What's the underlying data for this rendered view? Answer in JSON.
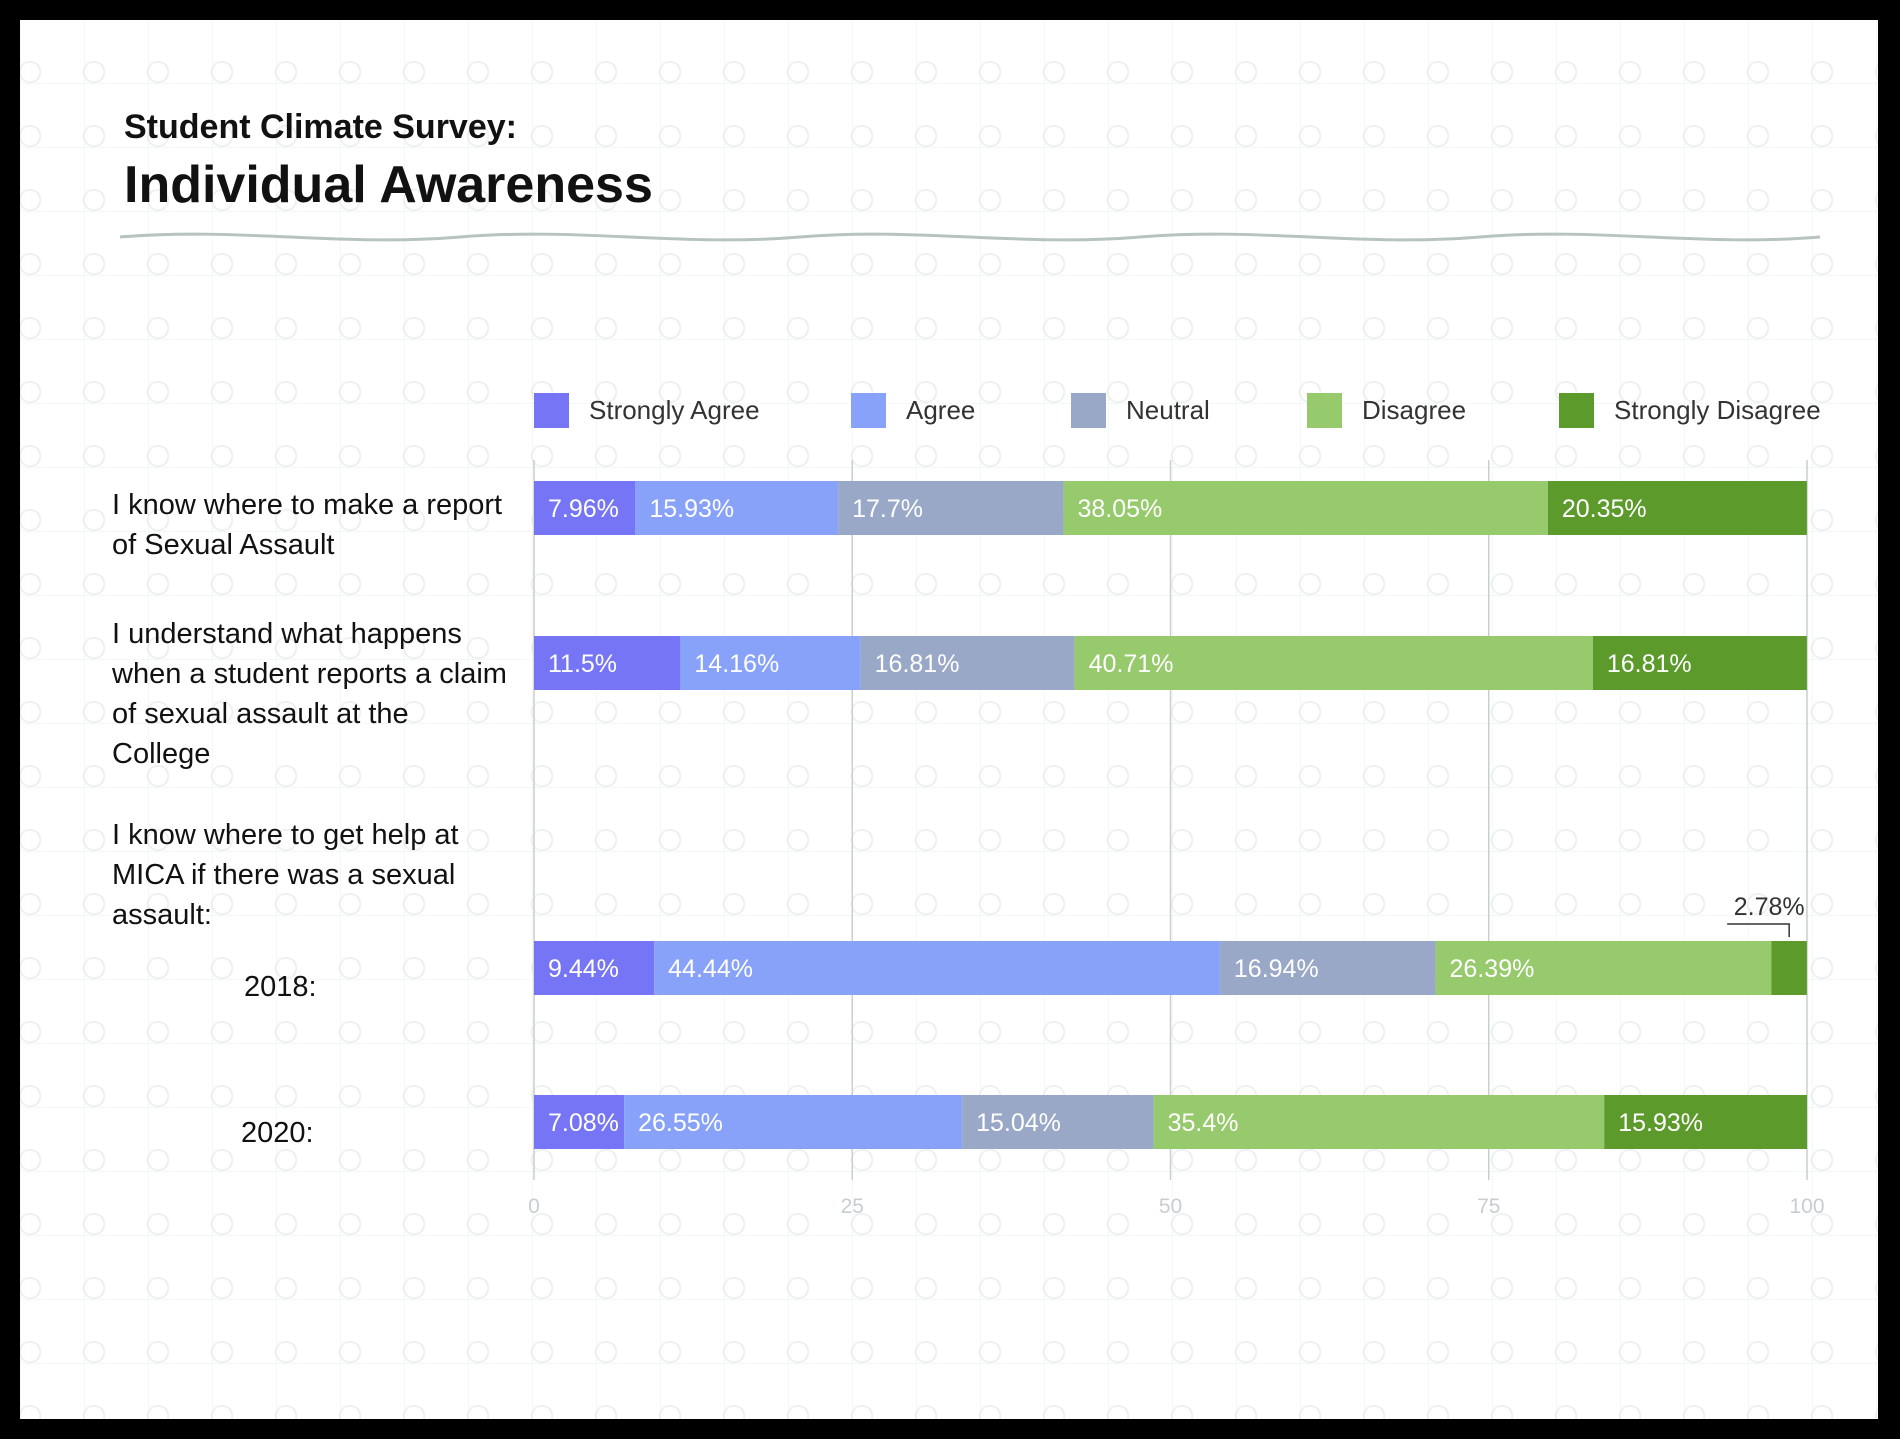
{
  "header": {
    "subtitle": "Student Climate Survey:",
    "title": "Individual Awareness"
  },
  "legend": [
    {
      "label": "Strongly Agree",
      "color": "#7575f5"
    },
    {
      "label": "Agree",
      "color": "#87a2f8"
    },
    {
      "label": "Neutral",
      "color": "#9aa8c8"
    },
    {
      "label": "Disagree",
      "color": "#96ca6c"
    },
    {
      "label": "Strongly Disagree",
      "color": "#5c9a2c"
    }
  ],
  "questions": [
    {
      "text": "I know where to make a report of Sexual Assault"
    },
    {
      "text": "I understand what happens when a student reports a claim of sexual assault at the College"
    },
    {
      "text": "I know where to get help at MICA if there was a sexual assault:"
    }
  ],
  "years": [
    "2018:",
    "2020:"
  ],
  "chart_data": {
    "type": "bar",
    "orientation": "horizontal",
    "stacked": true,
    "categories": [
      "I know where to make a report of Sexual Assault",
      "I understand what happens when a student reports a claim of sexual assault at the College",
      "I know where to get help at MICA if there was a sexual assault: 2018:",
      "I know where to get help at MICA if there was a sexual assault: 2020:"
    ],
    "series": [
      {
        "name": "Strongly Agree",
        "values": [
          7.96,
          11.5,
          9.44,
          7.08
        ],
        "labels": [
          "7.96%",
          "11.5%",
          "9.44%",
          "7.08%"
        ]
      },
      {
        "name": "Agree",
        "values": [
          15.93,
          14.16,
          44.44,
          26.55
        ],
        "labels": [
          "15.93%",
          "14.16%",
          "44.44%",
          "26.55%"
        ]
      },
      {
        "name": "Neutral",
        "values": [
          17.7,
          16.81,
          16.94,
          15.04
        ],
        "labels": [
          "17.7%",
          "16.81%",
          "16.94%",
          "15.04%"
        ]
      },
      {
        "name": "Disagree",
        "values": [
          38.05,
          40.71,
          26.39,
          35.4
        ],
        "labels": [
          "38.05%",
          "40.71%",
          "26.39%",
          "35.4%"
        ]
      },
      {
        "name": "Strongly Disagree",
        "values": [
          20.35,
          16.81,
          2.78,
          15.93
        ],
        "labels": [
          "20.35%",
          "16.81%",
          "2.78%",
          "15.93%"
        ]
      }
    ],
    "xlim": [
      0,
      100
    ],
    "xticks": [
      "0",
      "25",
      "50",
      "75",
      "100"
    ],
    "grid": true,
    "legend_position": "top"
  }
}
